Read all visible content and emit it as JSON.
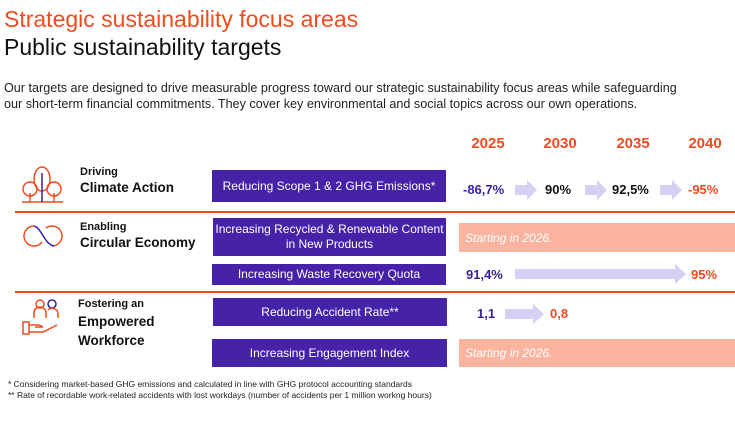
{
  "header": {
    "title": "Strategic sustainability focus areas",
    "subtitle": "Public sustainability targets"
  },
  "intro": [
    "Our targets are designed to drive measurable progress toward our strategic sustainability focus areas while safeguarding",
    "our short-term financial commitments. They cover key environmental and social topics across our own operations."
  ],
  "years": [
    "2025",
    "2030",
    "2035",
    "2040"
  ],
  "categories": [
    {
      "small": "Driving",
      "big": [
        "Climate Action"
      ],
      "icon": "trees-icon"
    },
    {
      "small": "Enabling",
      "big": [
        "Circular Economy"
      ],
      "icon": "circular-arrows-icon"
    },
    {
      "small": "Fostering an",
      "big": [
        "Empowered",
        "Workforce"
      ],
      "icon": "people-hand-icon"
    }
  ],
  "targets": [
    {
      "label": "Reducing Scope 1 & 2 GHG Emissions*",
      "values": [
        "-86,7%",
        "90%",
        "92,5%",
        "-95%"
      ]
    },
    {
      "label": "Increasing Recycled & Renewable Content in New Products",
      "status": "Starting in 2026."
    },
    {
      "label": "Increasing Waste Recovery Quota",
      "values": [
        "91,4%",
        "95%"
      ]
    },
    {
      "label": "Reducing Accident Rate**",
      "values": [
        "1,1",
        "0,8"
      ]
    },
    {
      "label": "Increasing Engagement Index",
      "status": "Starting in 2026."
    }
  ],
  "footnotes": [
    "* Considering market-based GHG emissions and calculated in line with GHG protocol accounting standards",
    "** Rate of recordable work-related accidents with lost workdays (number of accidents per 1 million workng hours)"
  ],
  "colors": {
    "accent": "#ee4b1e",
    "purple": "#4622a8",
    "arrow": "#d8cff5",
    "pink": "#f9b39e"
  }
}
